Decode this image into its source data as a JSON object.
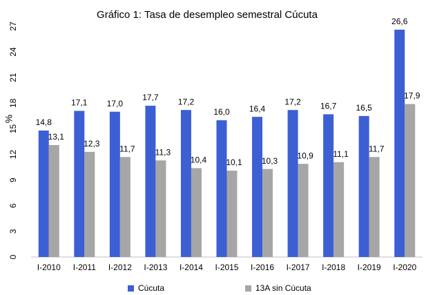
{
  "chart_data": {
    "type": "bar",
    "title": "Gráfico 1: Tasa de desempleo semestral Cúcuta",
    "y_label": "%",
    "categories": [
      "I-2010",
      "I-2011",
      "I-2012",
      "I-2013",
      "I-2014",
      "I-2015",
      "I-2016",
      "I-2017",
      "I-2018",
      "I-2019",
      "I-2020"
    ],
    "series": [
      {
        "name": "Cúcuta",
        "color": "#3c5fd4",
        "values": [
          14.8,
          17.1,
          17.0,
          17.7,
          17.2,
          16.0,
          16.4,
          17.2,
          16.7,
          16.5,
          26.6
        ],
        "value_labels": [
          "14,8",
          "17,1",
          "17,0",
          "17,7",
          "17,2",
          "16,0",
          "16,4",
          "17,2",
          "16,7",
          "16,5",
          "26,6"
        ]
      },
      {
        "name": "13A sin Cúcuta",
        "color": "#a6a6a6",
        "values": [
          13.1,
          12.3,
          11.7,
          11.3,
          10.4,
          10.1,
          10.3,
          10.9,
          11.1,
          11.7,
          17.9
        ],
        "value_labels": [
          "13,1",
          "12,3",
          "11,7",
          "11,3",
          "10,4",
          "10,1",
          "10,3",
          "10,9",
          "11,1",
          "11,7",
          "17,9"
        ]
      }
    ],
    "ylim": [
      0,
      27
    ],
    "yticks": [
      0,
      3,
      6,
      9,
      12,
      15,
      18,
      21,
      24,
      27
    ],
    "legend": "bottom",
    "grid": false
  }
}
